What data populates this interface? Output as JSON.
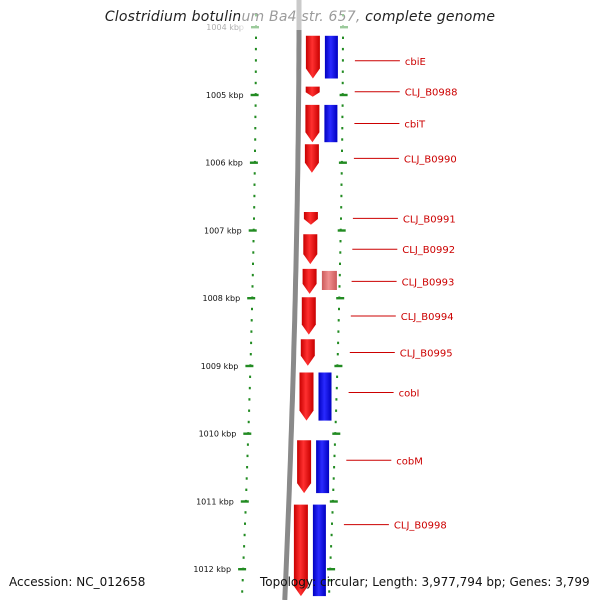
{
  "title": "Clostridium botulinum Ba4 str. 657, complete genome",
  "accession": "Accession: NC_012658",
  "topology": "Topology: circular; Length: 3,977,794 bp; Genes: 3,799",
  "colors": {
    "forward": "#ff0000",
    "reverse": "#0000ff",
    "pseudo": "#e07070",
    "tick": "#228b22",
    "backbone": "#808080",
    "label": "#cc0000"
  },
  "scale_labels": [
    "1004 kbp",
    "1005 kbp",
    "1006 kbp",
    "1007 kbp",
    "1008 kbp",
    "1009 kbp",
    "1010 kbp",
    "1011 kbp",
    "1012 kbp"
  ],
  "genes": [
    {
      "name": "cbiE",
      "start_kbp": 1004.13,
      "end_kbp": 1004.76,
      "strand": "forward",
      "reverse_copy": true
    },
    {
      "name": "CLJ_B0988",
      "start_kbp": 1004.88,
      "end_kbp": 1005.03,
      "strand": "forward",
      "reverse_copy": false
    },
    {
      "name": "cbiT",
      "start_kbp": 1005.15,
      "end_kbp": 1005.7,
      "strand": "forward",
      "reverse_copy": true
    },
    {
      "name": "CLJ_B0990",
      "start_kbp": 1005.73,
      "end_kbp": 1006.15,
      "strand": "forward",
      "reverse_copy": false
    },
    {
      "name": "CLJ_B0991",
      "start_kbp": 1006.73,
      "end_kbp": 1006.92,
      "strand": "forward",
      "reverse_copy": false
    },
    {
      "name": "CLJ_B0992",
      "start_kbp": 1007.06,
      "end_kbp": 1007.5,
      "strand": "forward",
      "reverse_copy": false
    },
    {
      "name": "CLJ_B0993",
      "start_kbp": 1007.57,
      "end_kbp": 1007.94,
      "strand": "forward",
      "reverse_copy": false,
      "pseudo": true
    },
    {
      "name": "CLJ_B0994",
      "start_kbp": 1007.99,
      "end_kbp": 1008.54,
      "strand": "forward",
      "reverse_copy": false
    },
    {
      "name": "CLJ_B0995",
      "start_kbp": 1008.61,
      "end_kbp": 1009.0,
      "strand": "forward",
      "reverse_copy": false
    },
    {
      "name": "cobI",
      "start_kbp": 1009.1,
      "end_kbp": 1009.81,
      "strand": "forward",
      "reverse_copy": true
    },
    {
      "name": "cobM",
      "start_kbp": 1010.1,
      "end_kbp": 1010.88,
      "strand": "forward",
      "reverse_copy": true
    },
    {
      "name": "CLJ_B0998",
      "start_kbp": 1011.05,
      "end_kbp": 1012.4,
      "strand": "forward",
      "reverse_copy": true
    }
  ]
}
